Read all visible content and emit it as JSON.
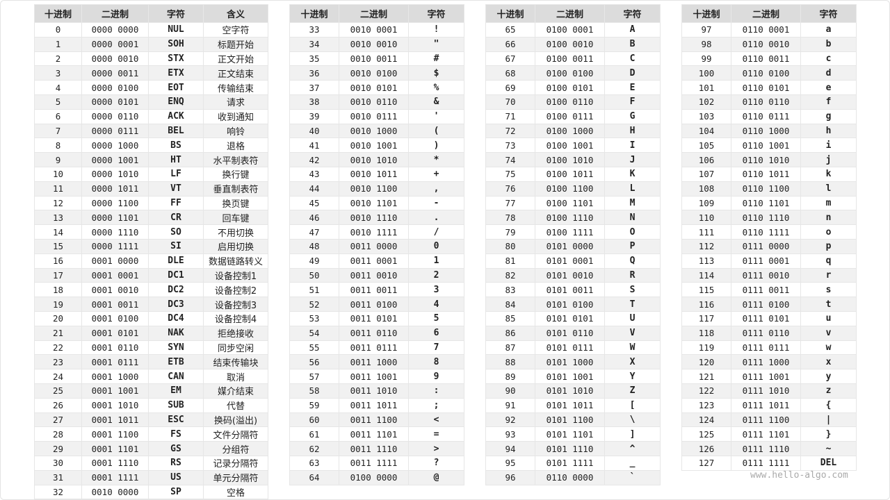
{
  "tables": [
    {
      "headers": [
        "十进制",
        "二进制",
        "字符",
        "含义"
      ],
      "rows": [
        [
          "0",
          "0000 0000",
          "NUL",
          "空字符"
        ],
        [
          "1",
          "0000 0001",
          "SOH",
          "标题开始"
        ],
        [
          "2",
          "0000 0010",
          "STX",
          "正文开始"
        ],
        [
          "3",
          "0000 0011",
          "ETX",
          "正文结束"
        ],
        [
          "4",
          "0000 0100",
          "EOT",
          "传输结束"
        ],
        [
          "5",
          "0000 0101",
          "ENQ",
          "请求"
        ],
        [
          "6",
          "0000 0110",
          "ACK",
          "收到通知"
        ],
        [
          "7",
          "0000 0111",
          "BEL",
          "响铃"
        ],
        [
          "8",
          "0000 1000",
          "BS",
          "退格"
        ],
        [
          "9",
          "0000 1001",
          "HT",
          "水平制表符"
        ],
        [
          "10",
          "0000 1010",
          "LF",
          "换行键"
        ],
        [
          "11",
          "0000 1011",
          "VT",
          "垂直制表符"
        ],
        [
          "12",
          "0000 1100",
          "FF",
          "换页键"
        ],
        [
          "13",
          "0000 1101",
          "CR",
          "回车键"
        ],
        [
          "14",
          "0000 1110",
          "SO",
          "不用切换"
        ],
        [
          "15",
          "0000 1111",
          "SI",
          "启用切换"
        ],
        [
          "16",
          "0001 0000",
          "DLE",
          "数据链路转义"
        ],
        [
          "17",
          "0001 0001",
          "DC1",
          "设备控制1"
        ],
        [
          "18",
          "0001 0010",
          "DC2",
          "设备控制2"
        ],
        [
          "19",
          "0001 0011",
          "DC3",
          "设备控制3"
        ],
        [
          "20",
          "0001 0100",
          "DC4",
          "设备控制4"
        ],
        [
          "21",
          "0001 0101",
          "NAK",
          "拒绝接收"
        ],
        [
          "22",
          "0001 0110",
          "SYN",
          "同步空闲"
        ],
        [
          "23",
          "0001 0111",
          "ETB",
          "结束传输块"
        ],
        [
          "24",
          "0001 1000",
          "CAN",
          "取消"
        ],
        [
          "25",
          "0001 1001",
          "EM",
          "媒介结束"
        ],
        [
          "26",
          "0001 1010",
          "SUB",
          "代替"
        ],
        [
          "27",
          "0001 1011",
          "ESC",
          "换码(溢出)"
        ],
        [
          "28",
          "0001 1100",
          "FS",
          "文件分隔符"
        ],
        [
          "29",
          "0001 1101",
          "GS",
          "分组符"
        ],
        [
          "30",
          "0001 1110",
          "RS",
          "记录分隔符"
        ],
        [
          "31",
          "0001 1111",
          "US",
          "单元分隔符"
        ],
        [
          "32",
          "0010 0000",
          "SP",
          "空格"
        ]
      ]
    },
    {
      "headers": [
        "十进制",
        "二进制",
        "字符"
      ],
      "rows": [
        [
          "33",
          "0010 0001",
          "!"
        ],
        [
          "34",
          "0010 0010",
          "\""
        ],
        [
          "35",
          "0010 0011",
          "#"
        ],
        [
          "36",
          "0010 0100",
          "$"
        ],
        [
          "37",
          "0010 0101",
          "%"
        ],
        [
          "38",
          "0010 0110",
          "&"
        ],
        [
          "39",
          "0010 0111",
          "'"
        ],
        [
          "40",
          "0010 1000",
          "("
        ],
        [
          "41",
          "0010 1001",
          ")"
        ],
        [
          "42",
          "0010 1010",
          "*"
        ],
        [
          "43",
          "0010 1011",
          "+"
        ],
        [
          "44",
          "0010 1100",
          ","
        ],
        [
          "45",
          "0010 1101",
          "-"
        ],
        [
          "46",
          "0010 1110",
          "."
        ],
        [
          "47",
          "0010 1111",
          "/"
        ],
        [
          "48",
          "0011 0000",
          "0"
        ],
        [
          "49",
          "0011 0001",
          "1"
        ],
        [
          "50",
          "0011 0010",
          "2"
        ],
        [
          "51",
          "0011 0011",
          "3"
        ],
        [
          "52",
          "0011 0100",
          "4"
        ],
        [
          "53",
          "0011 0101",
          "5"
        ],
        [
          "54",
          "0011 0110",
          "6"
        ],
        [
          "55",
          "0011 0111",
          "7"
        ],
        [
          "56",
          "0011 1000",
          "8"
        ],
        [
          "57",
          "0011 1001",
          "9"
        ],
        [
          "58",
          "0011 1010",
          ":"
        ],
        [
          "59",
          "0011 1011",
          ";"
        ],
        [
          "60",
          "0011 1100",
          "<"
        ],
        [
          "61",
          "0011 1101",
          "="
        ],
        [
          "62",
          "0011 1110",
          ">"
        ],
        [
          "63",
          "0011 1111",
          "?"
        ],
        [
          "64",
          "0100 0000",
          "@"
        ]
      ]
    },
    {
      "headers": [
        "十进制",
        "二进制",
        "字符"
      ],
      "rows": [
        [
          "65",
          "0100 0001",
          "A"
        ],
        [
          "66",
          "0100 0010",
          "B"
        ],
        [
          "67",
          "0100 0011",
          "C"
        ],
        [
          "68",
          "0100 0100",
          "D"
        ],
        [
          "69",
          "0100 0101",
          "E"
        ],
        [
          "70",
          "0100 0110",
          "F"
        ],
        [
          "71",
          "0100 0111",
          "G"
        ],
        [
          "72",
          "0100 1000",
          "H"
        ],
        [
          "73",
          "0100 1001",
          "I"
        ],
        [
          "74",
          "0100 1010",
          "J"
        ],
        [
          "75",
          "0100 1011",
          "K"
        ],
        [
          "76",
          "0100 1100",
          "L"
        ],
        [
          "77",
          "0100 1101",
          "M"
        ],
        [
          "78",
          "0100 1110",
          "N"
        ],
        [
          "79",
          "0100 1111",
          "O"
        ],
        [
          "80",
          "0101 0000",
          "P"
        ],
        [
          "81",
          "0101 0001",
          "Q"
        ],
        [
          "82",
          "0101 0010",
          "R"
        ],
        [
          "83",
          "0101 0011",
          "S"
        ],
        [
          "84",
          "0101 0100",
          "T"
        ],
        [
          "85",
          "0101 0101",
          "U"
        ],
        [
          "86",
          "0101 0110",
          "V"
        ],
        [
          "87",
          "0101 0111",
          "W"
        ],
        [
          "88",
          "0101 1000",
          "X"
        ],
        [
          "89",
          "0101 1001",
          "Y"
        ],
        [
          "90",
          "0101 1010",
          "Z"
        ],
        [
          "91",
          "0101 1011",
          "["
        ],
        [
          "92",
          "0101 1100",
          "\\"
        ],
        [
          "93",
          "0101 1101",
          "]"
        ],
        [
          "94",
          "0101 1110",
          "^"
        ],
        [
          "95",
          "0101 1111",
          "_"
        ],
        [
          "96",
          "0110 0000",
          "`"
        ]
      ]
    },
    {
      "headers": [
        "十进制",
        "二进制",
        "字符"
      ],
      "rows": [
        [
          "97",
          "0110 0001",
          "a"
        ],
        [
          "98",
          "0110 0010",
          "b"
        ],
        [
          "99",
          "0110 0011",
          "c"
        ],
        [
          "100",
          "0110 0100",
          "d"
        ],
        [
          "101",
          "0110 0101",
          "e"
        ],
        [
          "102",
          "0110 0110",
          "f"
        ],
        [
          "103",
          "0110 0111",
          "g"
        ],
        [
          "104",
          "0110 1000",
          "h"
        ],
        [
          "105",
          "0110 1001",
          "i"
        ],
        [
          "106",
          "0110 1010",
          "j"
        ],
        [
          "107",
          "0110 1011",
          "k"
        ],
        [
          "108",
          "0110 1100",
          "l"
        ],
        [
          "109",
          "0110 1101",
          "m"
        ],
        [
          "110",
          "0110 1110",
          "n"
        ],
        [
          "111",
          "0110 1111",
          "o"
        ],
        [
          "112",
          "0111 0000",
          "p"
        ],
        [
          "113",
          "0111 0001",
          "q"
        ],
        [
          "114",
          "0111 0010",
          "r"
        ],
        [
          "115",
          "0111 0011",
          "s"
        ],
        [
          "116",
          "0111 0100",
          "t"
        ],
        [
          "117",
          "0111 0101",
          "u"
        ],
        [
          "118",
          "0111 0110",
          "v"
        ],
        [
          "119",
          "0111 0111",
          "w"
        ],
        [
          "120",
          "0111 1000",
          "x"
        ],
        [
          "121",
          "0111 1001",
          "y"
        ],
        [
          "122",
          "0111 1010",
          "z"
        ],
        [
          "123",
          "0111 1011",
          "{"
        ],
        [
          "124",
          "0111 1100",
          "|"
        ],
        [
          "125",
          "0111 1101",
          "}"
        ],
        [
          "126",
          "0111 1110",
          "~"
        ],
        [
          "127",
          "0111 1111",
          "DEL"
        ]
      ]
    }
  ],
  "watermark": "www.hello-algo.com"
}
